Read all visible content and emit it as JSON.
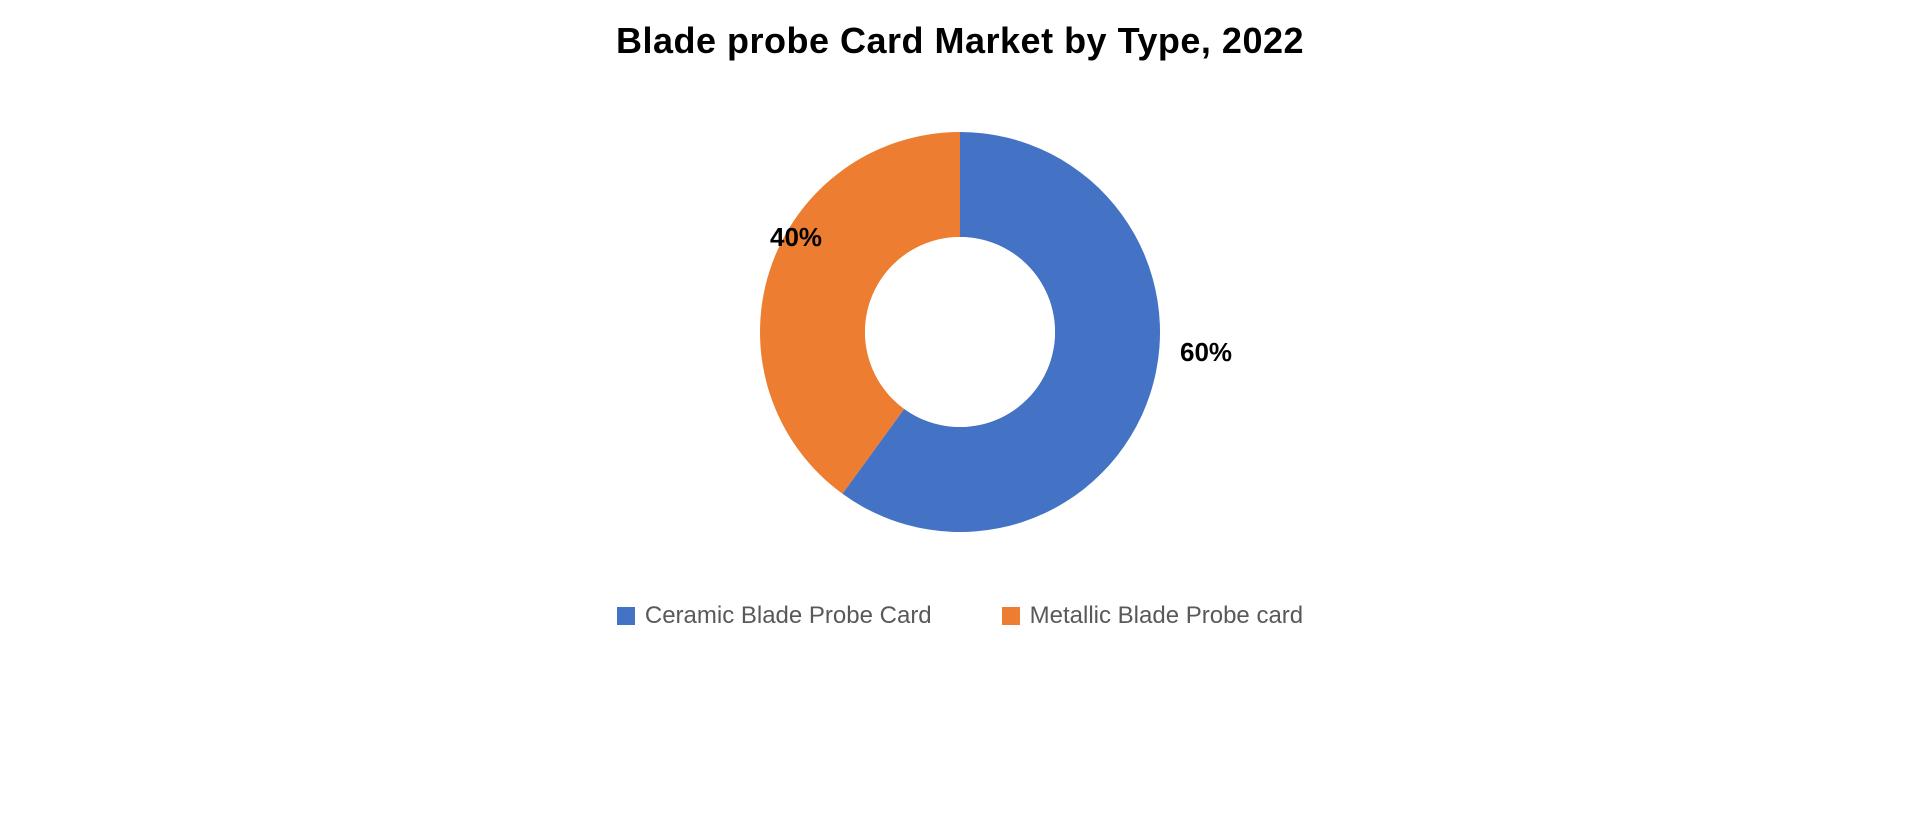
{
  "chart": {
    "type": "donut",
    "title": "Blade probe Card Market by Type, 2022",
    "title_fontsize": 36,
    "title_fontweight": 600,
    "title_color": "#000000",
    "background_color": "#ffffff",
    "outer_radius": 200,
    "inner_radius": 95,
    "center_fill": "#ffffff",
    "slices": [
      {
        "name": "Ceramic Blade Probe Card",
        "value": 60,
        "label": "60%",
        "color": "#4472c4"
      },
      {
        "name": "Metallic Blade Probe card",
        "value": 40,
        "label": "40%",
        "color": "#ed7d31"
      }
    ],
    "label_fontsize": 26,
    "label_fontweight": 700,
    "label_color": "#000000",
    "legend": {
      "fontsize": 24,
      "text_color": "#595959",
      "swatch_size": 18,
      "items": [
        {
          "label": "Ceramic Blade Probe Card",
          "color": "#4472c4"
        },
        {
          "label": "Metallic Blade Probe card",
          "color": "#ed7d31"
        }
      ]
    }
  }
}
